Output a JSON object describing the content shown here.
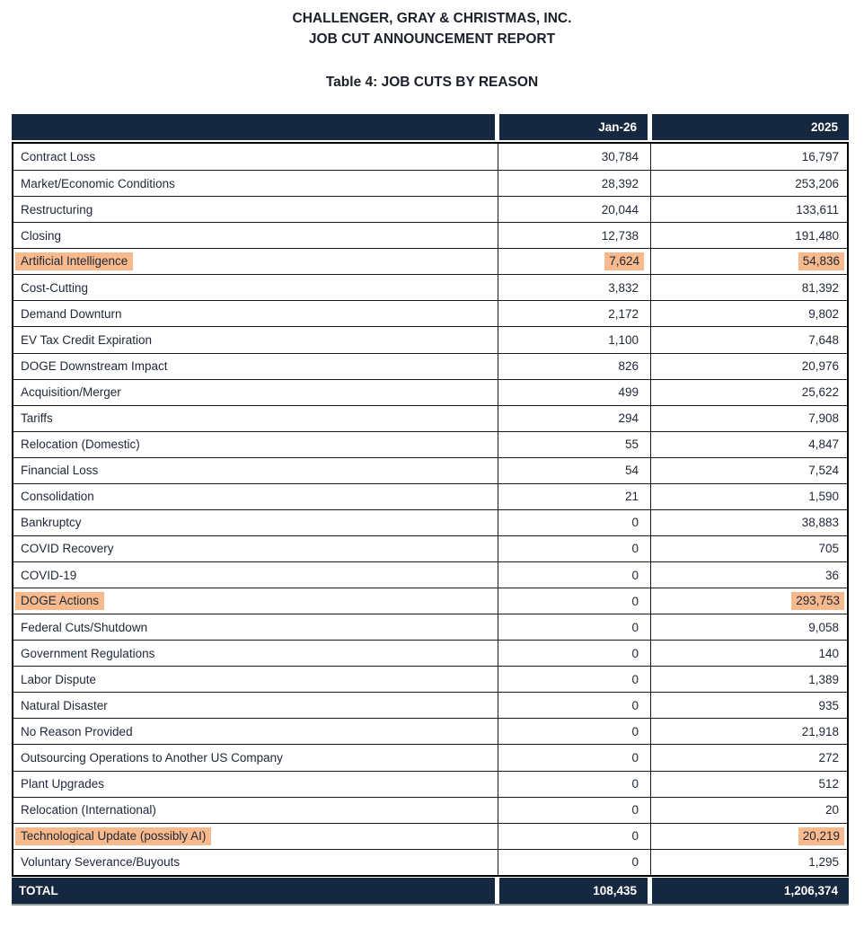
{
  "report": {
    "title_line1": "CHALLENGER, GRAY & CHRISTMAS, INC.",
    "title_line2": "JOB CUT ANNOUNCEMENT REPORT"
  },
  "table": {
    "title": "Table 4: JOB CUTS BY REASON",
    "columns": [
      "",
      "Jan-26",
      "2025"
    ],
    "rows": [
      {
        "reason": "Contract Loss",
        "jan26": "30,784",
        "y2025": "16,797",
        "highlight": []
      },
      {
        "reason": "Market/Economic Conditions",
        "jan26": "28,392",
        "y2025": "253,206",
        "highlight": []
      },
      {
        "reason": "Restructuring",
        "jan26": "20,044",
        "y2025": "133,611",
        "highlight": []
      },
      {
        "reason": "Closing",
        "jan26": "12,738",
        "y2025": "191,480",
        "highlight": []
      },
      {
        "reason": "Artificial Intelligence",
        "jan26": "7,624",
        "y2025": "54,836",
        "highlight": [
          "reason",
          "jan26",
          "y2025"
        ]
      },
      {
        "reason": "Cost-Cutting",
        "jan26": "3,832",
        "y2025": "81,392",
        "highlight": []
      },
      {
        "reason": "Demand Downturn",
        "jan26": "2,172",
        "y2025": "9,802",
        "highlight": []
      },
      {
        "reason": "EV Tax Credit Expiration",
        "jan26": "1,100",
        "y2025": "7,648",
        "highlight": []
      },
      {
        "reason": "DOGE Downstream Impact",
        "jan26": "826",
        "y2025": "20,976",
        "highlight": []
      },
      {
        "reason": "Acquisition/Merger",
        "jan26": "499",
        "y2025": "25,622",
        "highlight": []
      },
      {
        "reason": "Tariffs",
        "jan26": "294",
        "y2025": "7,908",
        "highlight": []
      },
      {
        "reason": "Relocation (Domestic)",
        "jan26": "55",
        "y2025": "4,847",
        "highlight": []
      },
      {
        "reason": "Financial Loss",
        "jan26": "54",
        "y2025": "7,524",
        "highlight": []
      },
      {
        "reason": "Consolidation",
        "jan26": "21",
        "y2025": "1,590",
        "highlight": []
      },
      {
        "reason": "Bankruptcy",
        "jan26": "0",
        "y2025": "38,883",
        "highlight": []
      },
      {
        "reason": "COVID Recovery",
        "jan26": "0",
        "y2025": "705",
        "highlight": []
      },
      {
        "reason": "COVID-19",
        "jan26": "0",
        "y2025": "36",
        "highlight": []
      },
      {
        "reason": "DOGE Actions",
        "jan26": "0",
        "y2025": "293,753",
        "highlight": [
          "reason",
          "y2025"
        ]
      },
      {
        "reason": "Federal Cuts/Shutdown",
        "jan26": "0",
        "y2025": "9,058",
        "highlight": []
      },
      {
        "reason": "Government Regulations",
        "jan26": "0",
        "y2025": "140",
        "highlight": []
      },
      {
        "reason": "Labor Dispute",
        "jan26": "0",
        "y2025": "1,389",
        "highlight": []
      },
      {
        "reason": "Natural Disaster",
        "jan26": "0",
        "y2025": "935",
        "highlight": []
      },
      {
        "reason": "No Reason Provided",
        "jan26": "0",
        "y2025": "21,918",
        "highlight": []
      },
      {
        "reason": "Outsourcing Operations to Another US Company",
        "jan26": "0",
        "y2025": "272",
        "highlight": []
      },
      {
        "reason": "Plant Upgrades",
        "jan26": "0",
        "y2025": "512",
        "highlight": []
      },
      {
        "reason": "Relocation (International)",
        "jan26": "0",
        "y2025": "20",
        "highlight": []
      },
      {
        "reason": "Technological Update (possibly AI)",
        "jan26": "0",
        "y2025": "20,219",
        "highlight": [
          "reason",
          "y2025"
        ]
      },
      {
        "reason": "Voluntary Severance/Buyouts",
        "jan26": "0",
        "y2025": "1,295",
        "highlight": []
      }
    ],
    "total": {
      "label": "TOTAL",
      "jan26": "108,435",
      "y2025": "1,206,374"
    }
  },
  "colors": {
    "header_bg": "#16283f",
    "highlight": "#f8ba8c",
    "header_text": "#ffffff",
    "body_text": "#1e2736"
  }
}
